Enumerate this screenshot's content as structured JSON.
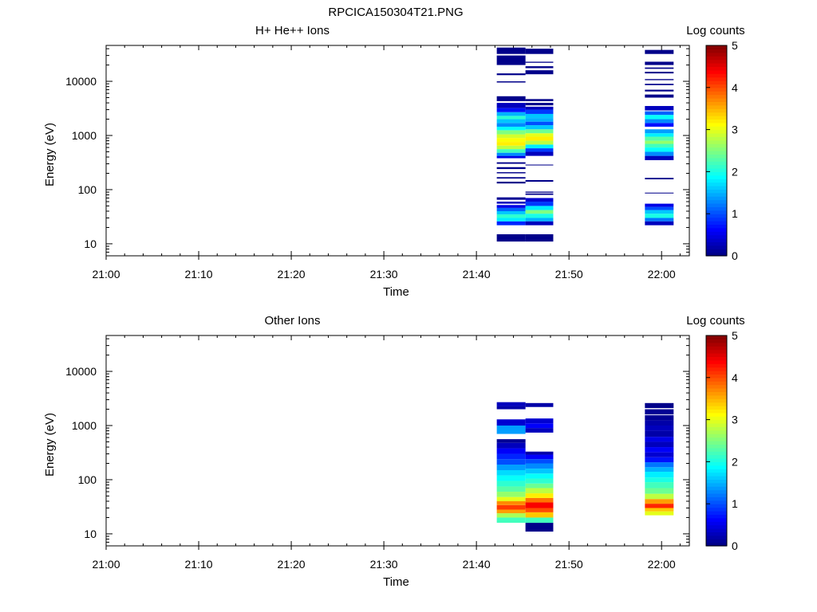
{
  "figure_title": "RPCICA150304T21.PNG",
  "chart_data": [
    {
      "type": "heatmap",
      "title": "H+ He++ Ions",
      "xlabel": "Time",
      "ylabel": "Energy (eV)",
      "x_tick_labels": [
        "21:00",
        "21:10",
        "21:20",
        "21:30",
        "21:40",
        "21:50",
        "22:00"
      ],
      "x_tick_minutes": [
        0,
        10,
        20,
        30,
        40,
        50,
        60
      ],
      "xlim_minutes": [
        0,
        63
      ],
      "y_scale": "log",
      "ylim": [
        6,
        46000
      ],
      "y_tick_labels": [
        "10",
        "100",
        "1000",
        "10000"
      ],
      "y_tick_values": [
        10,
        100,
        1000,
        10000
      ],
      "colorbar": {
        "label": "Log counts",
        "range": [
          0,
          5
        ],
        "tick_labels": [
          "0",
          "1",
          "2",
          "3",
          "4",
          "5"
        ],
        "colormap": "jet"
      },
      "columns": [
        {
          "t_start": 42.2,
          "t_end": 45.3,
          "cells": [
            [
              11,
              15,
              0.05
            ],
            [
              22,
              26,
              0.8
            ],
            [
              26,
              30,
              1.8
            ],
            [
              30,
              35,
              2.1
            ],
            [
              35,
              40,
              1.6
            ],
            [
              40,
              46,
              1.1
            ],
            [
              46,
              52,
              0.5
            ],
            [
              55,
              60,
              0.3
            ],
            [
              65,
              72,
              0.1
            ],
            [
              130,
              140,
              0.05
            ],
            [
              160,
              170,
              0.05
            ],
            [
              200,
              210,
              0.05
            ],
            [
              240,
              260,
              0.05
            ],
            [
              300,
              320,
              0.05
            ],
            [
              380,
              420,
              0.5
            ],
            [
              420,
              480,
              1.3
            ],
            [
              480,
              560,
              2.2
            ],
            [
              560,
              650,
              2.8
            ],
            [
              650,
              760,
              3.2
            ],
            [
              760,
              900,
              3.1
            ],
            [
              900,
              1050,
              2.9
            ],
            [
              1050,
              1250,
              2.5
            ],
            [
              1250,
              1450,
              1.9
            ],
            [
              1450,
              1700,
              1.3
            ],
            [
              1700,
              2000,
              1.6
            ],
            [
              2000,
              2300,
              2.1
            ],
            [
              2300,
              2700,
              1.5
            ],
            [
              2700,
              3200,
              0.7
            ],
            [
              3200,
              4000,
              0.3
            ],
            [
              4300,
              5300,
              0.05
            ],
            [
              9500,
              10000,
              0.05
            ],
            [
              13000,
              14000,
              0.05
            ],
            [
              20000,
              30000,
              0.05
            ],
            [
              32000,
              42000,
              0.05
            ]
          ]
        },
        {
          "t_start": 45.3,
          "t_end": 48.3,
          "cells": [
            [
              11,
              15,
              0.05
            ],
            [
              22,
              26,
              0.3
            ],
            [
              26,
              30,
              1.5
            ],
            [
              30,
              36,
              2.0
            ],
            [
              36,
              42,
              2.5
            ],
            [
              42,
              50,
              1.8
            ],
            [
              50,
              60,
              0.9
            ],
            [
              60,
              70,
              0.4
            ],
            [
              80,
              85,
              0.05
            ],
            [
              88,
              92,
              0.05
            ],
            [
              140,
              150,
              0.05
            ],
            [
              280,
              290,
              0.05
            ],
            [
              420,
              500,
              0.3
            ],
            [
              500,
              580,
              0.9
            ],
            [
              580,
              680,
              1.8
            ],
            [
              680,
              800,
              2.8
            ],
            [
              800,
              950,
              3.2
            ],
            [
              950,
              1100,
              3.0
            ],
            [
              1100,
              1300,
              2.4
            ],
            [
              1300,
              1550,
              1.6
            ],
            [
              1550,
              1800,
              1.0
            ],
            [
              1800,
              2100,
              1.5
            ],
            [
              2100,
              2500,
              1.6
            ],
            [
              2500,
              3000,
              0.9
            ],
            [
              3000,
              3400,
              0.3
            ],
            [
              3600,
              4000,
              0.05
            ],
            [
              4300,
              4700,
              0.05
            ],
            [
              13500,
              16000,
              0.05
            ],
            [
              17500,
              19000,
              0.05
            ],
            [
              22000,
              23000,
              0.05
            ],
            [
              32000,
              40000,
              0.05
            ]
          ]
        },
        {
          "t_start": 58.2,
          "t_end": 61.3,
          "cells": [
            [
              22,
              26,
              0.3
            ],
            [
              26,
              30,
              1.2
            ],
            [
              30,
              36,
              2.0
            ],
            [
              36,
              42,
              1.6
            ],
            [
              42,
              48,
              1.0
            ],
            [
              48,
              55,
              0.5
            ],
            [
              85,
              88,
              0.05
            ],
            [
              155,
              165,
              0.05
            ],
            [
              350,
              420,
              0.3
            ],
            [
              420,
              500,
              1.3
            ],
            [
              500,
              600,
              1.9
            ],
            [
              600,
              700,
              2.2
            ],
            [
              700,
              800,
              2.6
            ],
            [
              800,
              950,
              2.3
            ],
            [
              950,
              1100,
              1.8
            ],
            [
              1100,
              1300,
              1.4
            ],
            [
              1450,
              1700,
              0.7
            ],
            [
              1700,
              2000,
              1.3
            ],
            [
              2000,
              2400,
              1.9
            ],
            [
              2400,
              2800,
              1.1
            ],
            [
              2900,
              3500,
              0.3
            ],
            [
              5000,
              5700,
              0.05
            ],
            [
              6500,
              7000,
              0.05
            ],
            [
              8500,
              9000,
              0.05
            ],
            [
              10500,
              11000,
              0.05
            ],
            [
              14000,
              15000,
              0.05
            ],
            [
              17000,
              18000,
              0.05
            ],
            [
              20000,
              23000,
              0.05
            ],
            [
              32000,
              38000,
              0.05
            ]
          ]
        }
      ]
    },
    {
      "type": "heatmap",
      "title": "Other Ions",
      "xlabel": "Time",
      "ylabel": "Energy (eV)",
      "x_tick_labels": [
        "21:00",
        "21:10",
        "21:20",
        "21:30",
        "21:40",
        "21:50",
        "22:00"
      ],
      "x_tick_minutes": [
        0,
        10,
        20,
        30,
        40,
        50,
        60
      ],
      "xlim_minutes": [
        0,
        63
      ],
      "y_scale": "log",
      "ylim": [
        6,
        46000
      ],
      "y_tick_labels": [
        "10",
        "100",
        "1000",
        "10000"
      ],
      "y_tick_values": [
        10,
        100,
        1000,
        10000
      ],
      "colorbar": {
        "label": "Log counts",
        "range": [
          0,
          5
        ],
        "tick_labels": [
          "0",
          "1",
          "2",
          "3",
          "4",
          "5"
        ],
        "colormap": "jet"
      },
      "columns": [
        {
          "t_start": 42.2,
          "t_end": 45.3,
          "cells": [
            [
              16,
              20,
              2.2
            ],
            [
              20,
              24,
              2.7
            ],
            [
              24,
              28,
              3.6
            ],
            [
              28,
              34,
              4.1
            ],
            [
              34,
              40,
              3.7
            ],
            [
              40,
              48,
              3.0
            ],
            [
              48,
              60,
              2.6
            ],
            [
              60,
              75,
              2.3
            ],
            [
              75,
              95,
              2.1
            ],
            [
              95,
              120,
              1.9
            ],
            [
              120,
              150,
              1.7
            ],
            [
              150,
              190,
              1.4
            ],
            [
              190,
              240,
              1.0
            ],
            [
              240,
              300,
              0.8
            ],
            [
              300,
              380,
              0.6
            ],
            [
              380,
              480,
              0.3
            ],
            [
              480,
              560,
              0.1
            ],
            [
              700,
              1000,
              1.4
            ],
            [
              1000,
              1300,
              0.4
            ],
            [
              2000,
              2300,
              0.2
            ],
            [
              2300,
              2700,
              0.3
            ]
          ]
        },
        {
          "t_start": 45.3,
          "t_end": 48.3,
          "cells": [
            [
              11,
              16,
              0.05
            ],
            [
              16,
              20,
              2.2
            ],
            [
              20,
              25,
              3.4
            ],
            [
              25,
              30,
              4.0
            ],
            [
              30,
              38,
              4.4
            ],
            [
              38,
              46,
              3.8
            ],
            [
              46,
              56,
              3.2
            ],
            [
              56,
              70,
              2.8
            ],
            [
              70,
              85,
              2.4
            ],
            [
              85,
              105,
              2.1
            ],
            [
              105,
              130,
              1.9
            ],
            [
              130,
              160,
              1.6
            ],
            [
              160,
              200,
              1.3
            ],
            [
              200,
              240,
              1.0
            ],
            [
              240,
              290,
              0.6
            ],
            [
              290,
              330,
              0.2
            ],
            [
              740,
              900,
              0.3
            ],
            [
              900,
              1100,
              0.6
            ],
            [
              1100,
              1350,
              0.4
            ],
            [
              2200,
              2600,
              0.2
            ]
          ]
        },
        {
          "t_start": 58.2,
          "t_end": 61.3,
          "cells": [
            [
              22,
              26,
              3.0
            ],
            [
              26,
              30,
              3.4
            ],
            [
              30,
              36,
              4.2
            ],
            [
              36,
              44,
              3.6
            ],
            [
              44,
              55,
              2.8
            ],
            [
              55,
              70,
              2.4
            ],
            [
              70,
              90,
              2.2
            ],
            [
              90,
              110,
              2.0
            ],
            [
              110,
              140,
              1.8
            ],
            [
              140,
              170,
              1.5
            ],
            [
              170,
              210,
              1.2
            ],
            [
              210,
              260,
              0.7
            ],
            [
              260,
              320,
              0.4
            ],
            [
              320,
              400,
              0.6
            ],
            [
              400,
              500,
              0.3
            ],
            [
              500,
              620,
              0.5
            ],
            [
              620,
              800,
              0.2
            ],
            [
              800,
              1000,
              0.3
            ],
            [
              1000,
              1250,
              0.2
            ],
            [
              1250,
              1550,
              0.1
            ],
            [
              1600,
              2000,
              0.1
            ],
            [
              2100,
              2600,
              0.05
            ]
          ]
        }
      ]
    }
  ]
}
